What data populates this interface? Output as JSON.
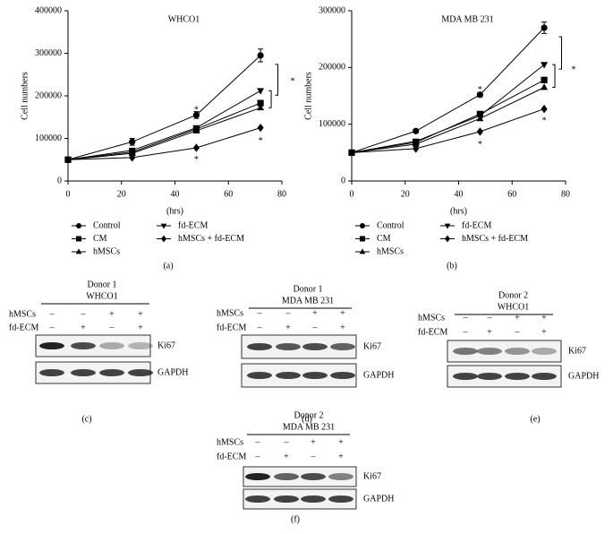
{
  "chart_data": [
    {
      "type": "line",
      "title": "WHCO1",
      "ylabel": "Cell numbers",
      "xlabel": "(hrs)",
      "caption": "(a)",
      "x": [
        0,
        24,
        48,
        72
      ],
      "xlim": [
        0,
        80
      ],
      "xticks": [
        0,
        20,
        40,
        60,
        80
      ],
      "ylim": [
        0,
        400000
      ],
      "yticks": [
        0,
        100000,
        200000,
        300000,
        400000
      ],
      "series": [
        {
          "name": "Control",
          "color": "#000000",
          "marker": "circle",
          "values": [
            50000,
            92000,
            155000,
            295000
          ],
          "errors": [
            0,
            8000,
            8000,
            15000
          ]
        },
        {
          "name": "CM",
          "color": "#000000",
          "marker": "square",
          "values": [
            50000,
            68000,
            122000,
            183000
          ]
        },
        {
          "name": "hMSCs",
          "color": "#000000",
          "marker": "triangle-up",
          "values": [
            50000,
            65000,
            118000,
            172000
          ]
        },
        {
          "name": "fd-ECM",
          "color": "#000000",
          "marker": "triangle-down",
          "values": [
            50000,
            72000,
            125000,
            212000
          ]
        },
        {
          "name": "hMSCs + fd-ECM",
          "color": "#000000",
          "marker": "diamond",
          "values": [
            50000,
            55000,
            78000,
            125000
          ]
        }
      ],
      "annotations": [
        {
          "text": "*",
          "x": 48,
          "y": 172000
        },
        {
          "text": "*",
          "x": 48,
          "y": 55000
        },
        {
          "text": "*",
          "x": 72,
          "y": 100000
        },
        {
          "text": "*",
          "x": 84,
          "y": 240000
        }
      ]
    },
    {
      "type": "line",
      "title": "MDA MB 231",
      "ylabel": "Cell numbers",
      "xlabel": "(hrs)",
      "caption": "(b)",
      "x": [
        0,
        24,
        48,
        72
      ],
      "xlim": [
        0,
        80
      ],
      "xticks": [
        0,
        20,
        40,
        60,
        80
      ],
      "ylim": [
        0,
        300000
      ],
      "yticks": [
        0,
        100000,
        200000,
        300000
      ],
      "series": [
        {
          "name": "Control",
          "color": "#000000",
          "marker": "circle",
          "values": [
            50000,
            88000,
            152000,
            270000
          ],
          "errors": [
            0,
            3000,
            4000,
            10000
          ]
        },
        {
          "name": "CM",
          "color": "#000000",
          "marker": "square",
          "values": [
            50000,
            68000,
            118000,
            178000
          ]
        },
        {
          "name": "hMSCs",
          "color": "#000000",
          "marker": "triangle-up",
          "values": [
            50000,
            65000,
            110000,
            165000
          ]
        },
        {
          "name": "fd-ECM",
          "color": "#000000",
          "marker": "triangle-down",
          "values": [
            50000,
            70000,
            115000,
            205000
          ]
        },
        {
          "name": "hMSCs + fd-ECM",
          "color": "#000000",
          "marker": "diamond",
          "values": [
            50000,
            57000,
            87000,
            127000
          ]
        }
      ],
      "annotations": [
        {
          "text": "*",
          "x": 48,
          "y": 165000
        },
        {
          "text": "*",
          "x": 48,
          "y": 68000
        },
        {
          "text": "*",
          "x": 72,
          "y": 110000
        },
        {
          "text": "*",
          "x": 83,
          "y": 200000
        }
      ]
    }
  ],
  "blots": [
    {
      "donor": "Donor 1",
      "cell_line": "WHCO1",
      "rows": [
        {
          "label": "hMSCs",
          "signs": [
            "–",
            "–",
            "+",
            "+"
          ]
        },
        {
          "label": "fd-ECM",
          "signs": [
            "–",
            "+",
            "–",
            "+"
          ]
        }
      ],
      "bands": [
        "Ki67",
        "GAPDH"
      ],
      "caption": "(c)"
    },
    {
      "donor": "Donor 1",
      "cell_line": "MDA MB 231",
      "rows": [
        {
          "label": "hMSCs",
          "signs": [
            "–",
            "–",
            "+",
            "+"
          ]
        },
        {
          "label": "fd-ECM",
          "signs": [
            "–",
            "+",
            "–",
            "+"
          ]
        }
      ],
      "bands": [
        "Ki67",
        "GAPDH"
      ],
      "caption": "(d)"
    },
    {
      "donor": "Donor 2",
      "cell_line": "WHCO1",
      "rows": [
        {
          "label": "hMSCs",
          "signs": [
            "–",
            "–",
            "+",
            "+"
          ]
        },
        {
          "label": "fd-ECM",
          "signs": [
            "–",
            "+",
            "–",
            "+"
          ]
        }
      ],
      "bands": [
        "Ki67",
        "GAPDH"
      ],
      "caption": "(e)"
    },
    {
      "donor": "Donor 2",
      "cell_line": "MDA MB 231",
      "rows": [
        {
          "label": "hMSCs",
          "signs": [
            "–",
            "–",
            "+",
            "+"
          ]
        },
        {
          "label": "fd-ECM",
          "signs": [
            "–",
            "+",
            "–",
            "+"
          ]
        }
      ],
      "bands": [
        "Ki67",
        "GAPDH"
      ],
      "caption": "(f)"
    }
  ]
}
